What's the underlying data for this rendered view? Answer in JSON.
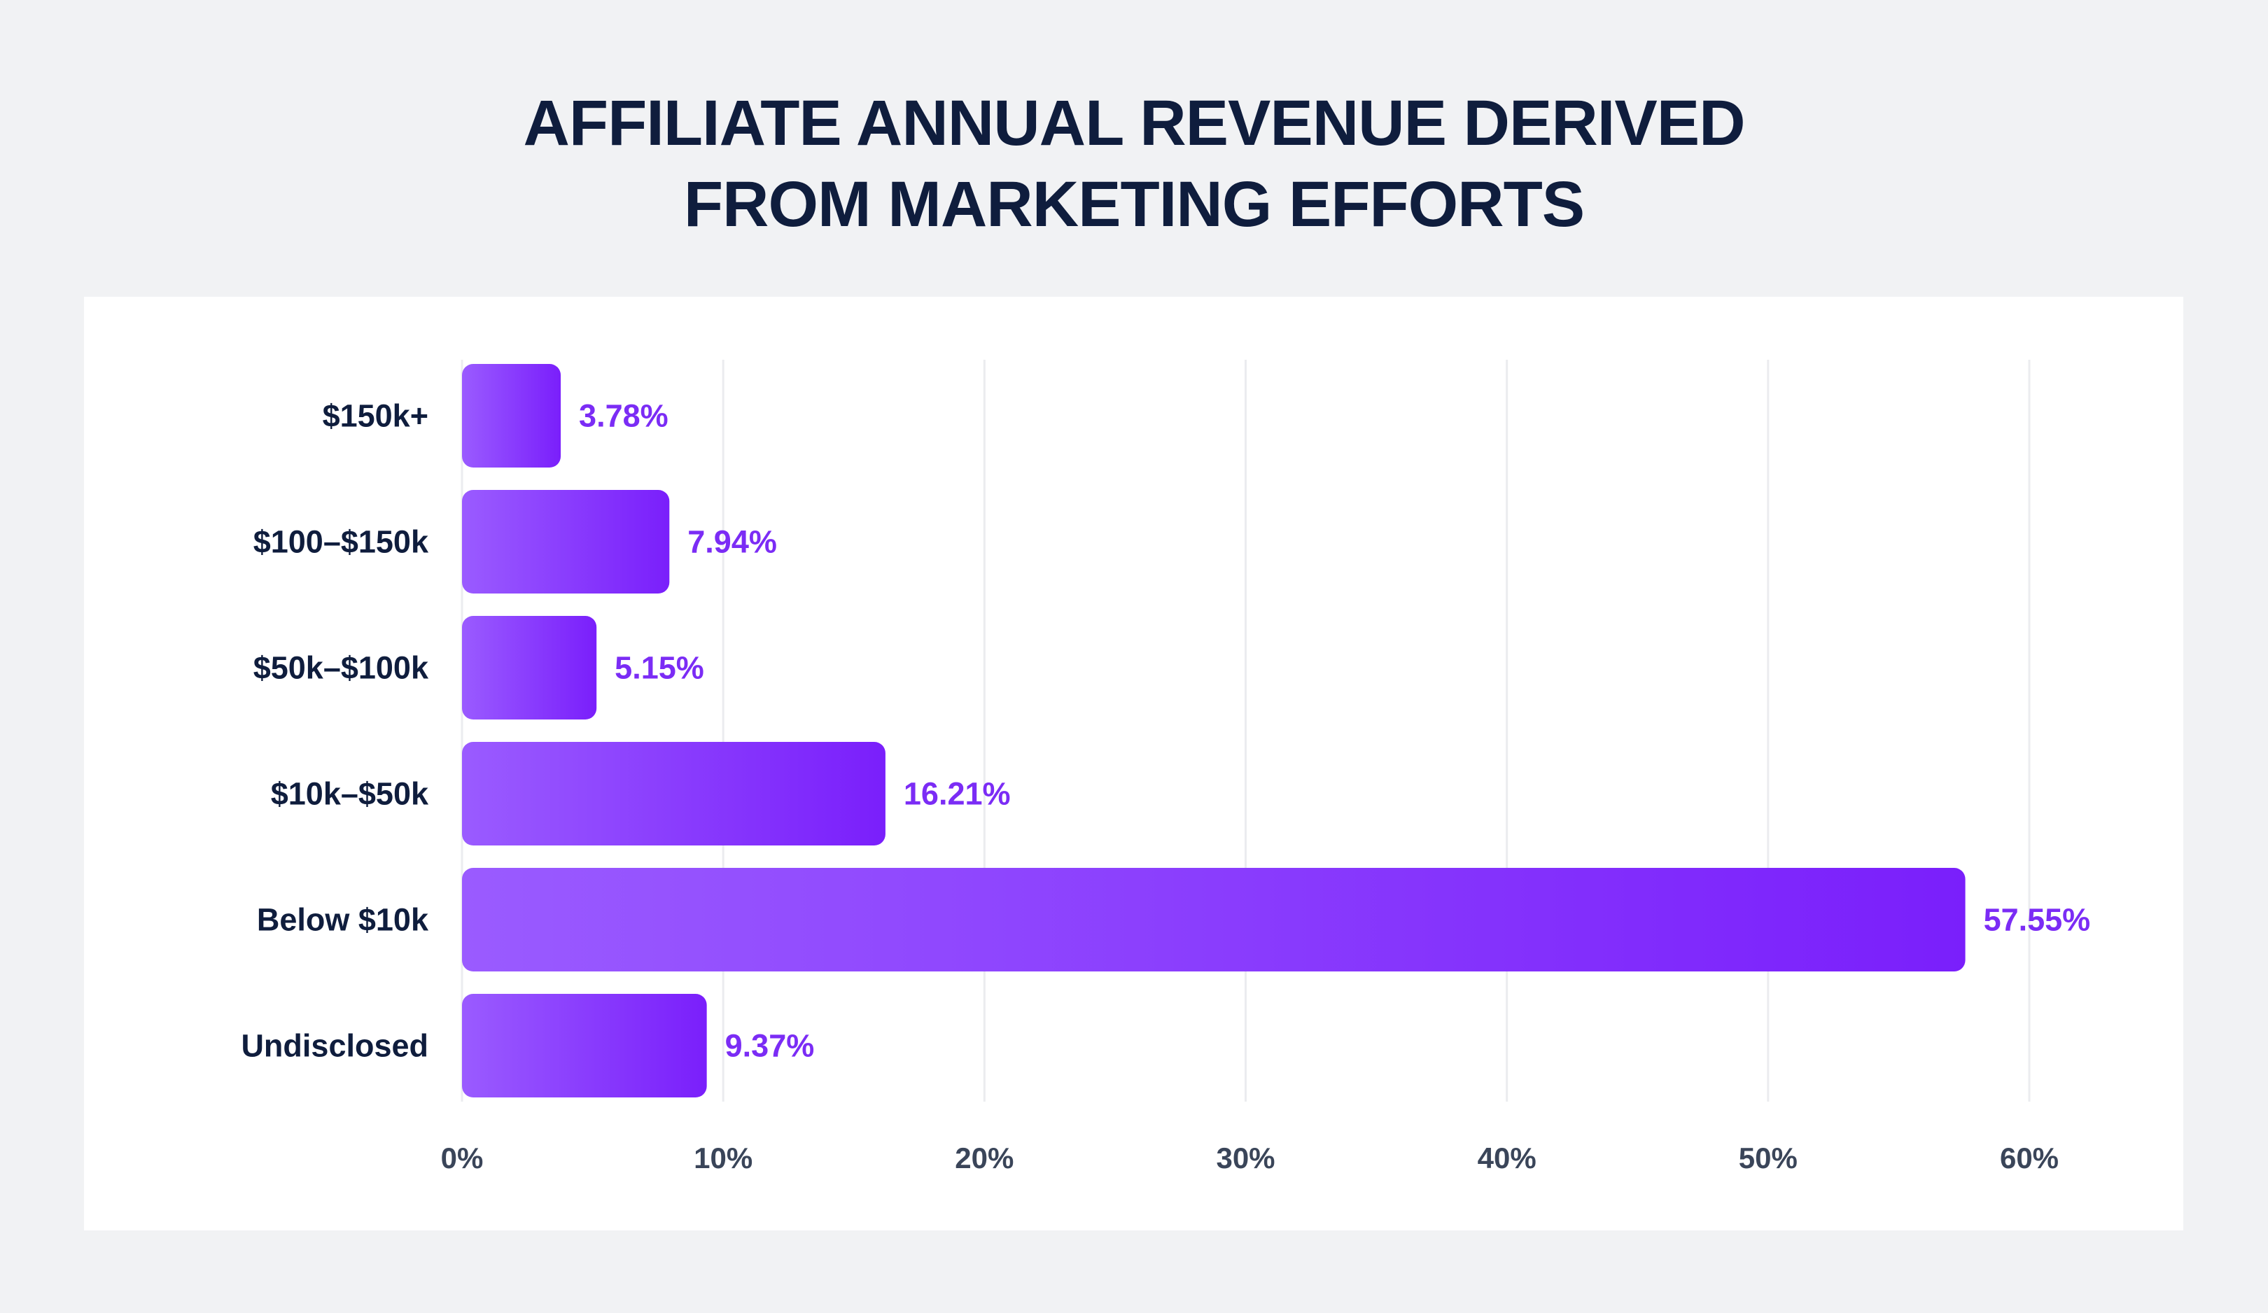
{
  "title_lines": [
    "AFFILIATE ANNUAL REVENUE DERIVED",
    "FROM MARKETING EFFORTS"
  ],
  "colors": {
    "background": "#f1f2f4",
    "card": "#ffffff",
    "title": "#0f1d3d",
    "bar_start": "#9a5bff",
    "bar_end": "#7a1ffb",
    "value_label": "#7b2cf5",
    "tick_label": "#3a4559",
    "grid": "#ebecef"
  },
  "chart_data": {
    "type": "bar",
    "orientation": "horizontal",
    "title": "AFFILIATE ANNUAL REVENUE DERIVED FROM MARKETING EFFORTS",
    "categories": [
      "$150k+",
      "$100–$150k",
      "$50k–$100k",
      "$10k–$50k",
      "Below $10k",
      "Undisclosed"
    ],
    "values": [
      3.78,
      7.94,
      5.15,
      16.21,
      57.55,
      9.37
    ],
    "value_labels": [
      "3.78%",
      "7.94%",
      "5.15%",
      "16.21%",
      "57.55%",
      "9.37%"
    ],
    "xlim": [
      0,
      60
    ],
    "x_ticks": [
      0,
      10,
      20,
      30,
      40,
      50,
      60
    ],
    "x_tick_labels": [
      "0%",
      "10%",
      "20%",
      "30%",
      "40%",
      "50%",
      "60%"
    ],
    "xlabel": "",
    "ylabel": "",
    "grid": "vertical",
    "legend": "none"
  }
}
